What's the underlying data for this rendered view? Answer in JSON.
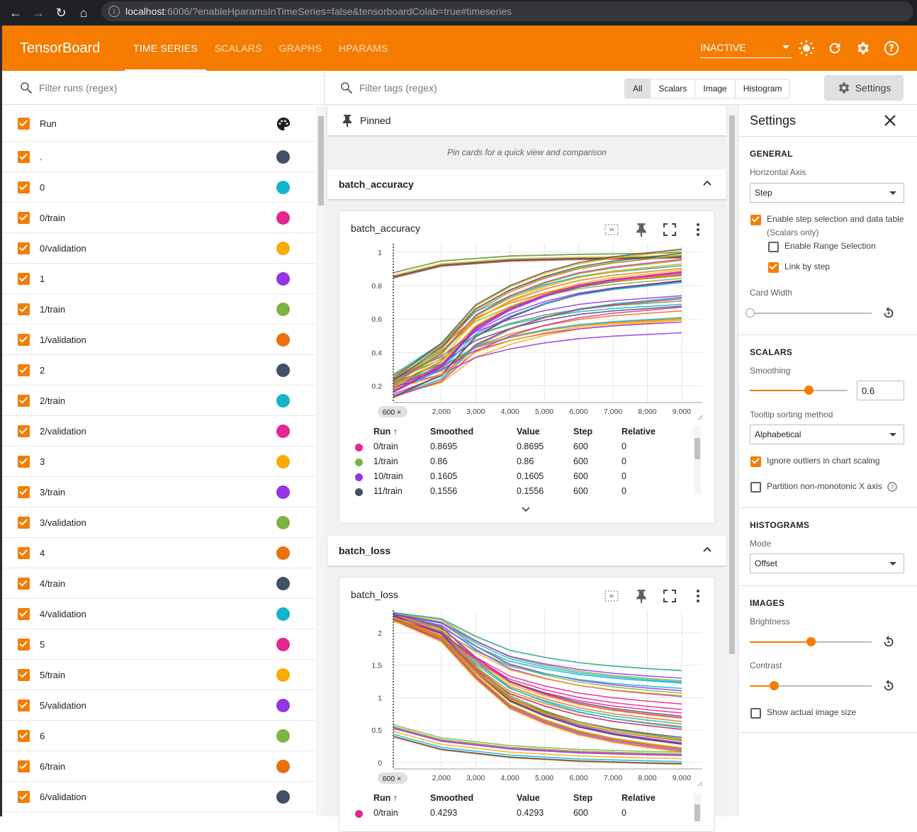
{
  "browser": {
    "url_host": "localhost",
    "url_rest": ":6006/?enableHparamsInTimeSeries=false&tensorboardColab=true#timeseries"
  },
  "topbar": {
    "brand": "TensorBoard",
    "tabs": [
      "TIME SERIES",
      "SCALARS",
      "GRAPHS",
      "HPARAMS"
    ],
    "active_tab": "TIME SERIES",
    "reload_select": "INACTIVE",
    "accent": "#f57c00"
  },
  "runs_panel": {
    "filter_placeholder": "Filter runs (regex)",
    "header_label": "Run",
    "runs": [
      {
        "name": ".",
        "color": "#425066"
      },
      {
        "name": "0",
        "color": "#12b5cb"
      },
      {
        "name": "0/train",
        "color": "#e52592"
      },
      {
        "name": "0/validation",
        "color": "#f9ab00"
      },
      {
        "name": "1",
        "color": "#9334e6"
      },
      {
        "name": "1/train",
        "color": "#7cb342"
      },
      {
        "name": "1/validation",
        "color": "#e8710a"
      },
      {
        "name": "2",
        "color": "#425066"
      },
      {
        "name": "2/train",
        "color": "#12b5cb"
      },
      {
        "name": "2/validation",
        "color": "#e52592"
      },
      {
        "name": "3",
        "color": "#f9ab00"
      },
      {
        "name": "3/train",
        "color": "#9334e6"
      },
      {
        "name": "3/validation",
        "color": "#7cb342"
      },
      {
        "name": "4",
        "color": "#e8710a"
      },
      {
        "name": "4/train",
        "color": "#425066"
      },
      {
        "name": "4/validation",
        "color": "#12b5cb"
      },
      {
        "name": "5",
        "color": "#e52592"
      },
      {
        "name": "5/train",
        "color": "#f9ab00"
      },
      {
        "name": "5/validation",
        "color": "#9334e6"
      },
      {
        "name": "6",
        "color": "#7cb342"
      },
      {
        "name": "6/train",
        "color": "#e8710a"
      },
      {
        "name": "6/validation",
        "color": "#425066"
      }
    ]
  },
  "main": {
    "filter_tags_placeholder": "Filter tags (regex)",
    "type_filters": [
      "All",
      "Scalars",
      "Image",
      "Histogram"
    ],
    "settings_button": "Settings",
    "pinned_label": "Pinned",
    "pinned_hint": "Pin cards for a quick view and comparison",
    "groups": [
      {
        "name": "batch_accuracy",
        "card_title": "batch_accuracy",
        "step_badge": "600",
        "table_headers": [
          "Run",
          "Smoothed",
          "Value",
          "Step",
          "Relative"
        ],
        "rows": [
          {
            "run": "0/train",
            "smoothed": "0.8695",
            "value": "0.8695",
            "step": "600",
            "relative": "0",
            "color": "#e52592"
          },
          {
            "run": "1/train",
            "smoothed": "0.86",
            "value": "0.86",
            "step": "600",
            "relative": "0",
            "color": "#7cb342"
          },
          {
            "run": "10/train",
            "smoothed": "0.1605",
            "value": "0.1605",
            "step": "600",
            "relative": "0",
            "color": "#9334e6"
          },
          {
            "run": "11/train",
            "smoothed": "0.1556",
            "value": "0.1556",
            "step": "600",
            "relative": "0",
            "color": "#425066"
          }
        ]
      },
      {
        "name": "batch_loss",
        "card_title": "batch_loss",
        "step_badge": "600",
        "table_headers": [
          "Run",
          "Smoothed",
          "Value",
          "Step",
          "Relative"
        ],
        "rows": [
          {
            "run": "0/train",
            "smoothed": "0.4293",
            "value": "0.4293",
            "step": "600",
            "relative": "0",
            "color": "#e52592"
          }
        ]
      }
    ]
  },
  "settings_panel": {
    "title": "Settings",
    "general": {
      "heading": "GENERAL",
      "horizontal_axis_label": "Horizontal Axis",
      "horizontal_axis_value": "Step",
      "step_selection_label": "Enable step selection and data table",
      "step_selection_sub": "(Scalars only)",
      "step_selection_checked": true,
      "range_selection_label": "Enable Range Selection",
      "range_selection_checked": false,
      "link_by_step_label": "Link by step",
      "link_by_step_checked": true,
      "card_width_label": "Card Width",
      "card_width_level": 0
    },
    "scalars": {
      "heading": "SCALARS",
      "smoothing_label": "Smoothing",
      "smoothing_value": "0.6",
      "smoothing_level": 0.6,
      "tooltip_sort_label": "Tooltip sorting method",
      "tooltip_sort_value": "Alphabetical",
      "ignore_outliers_label": "Ignore outliers in chart scaling",
      "ignore_outliers_checked": true,
      "partition_label": "Partition non-monotonic X axis",
      "partition_checked": false
    },
    "histograms": {
      "heading": "HISTOGRAMS",
      "mode_label": "Mode",
      "mode_value": "Offset"
    },
    "images": {
      "heading": "IMAGES",
      "brightness_label": "Brightness",
      "brightness_level": 0.5,
      "contrast_label": "Contrast",
      "contrast_level": 0.2,
      "actual_size_label": "Show actual image size",
      "actual_size_checked": false
    }
  },
  "chart_data": [
    {
      "type": "line",
      "title": "batch_accuracy",
      "x_ticks": [
        "2,000",
        "3,000",
        "4,000",
        "5,000",
        "6,000",
        "7,000",
        "8,000",
        "9,000"
      ],
      "y_ticks": [
        "0.2",
        "0.4",
        "0.6",
        "0.8",
        "1"
      ],
      "xlim": [
        600,
        9600
      ],
      "ylim": [
        0.1,
        1.05
      ],
      "selected_step": 600,
      "series_groups": [
        {
          "desc": "train-accuracy cluster",
          "x": [
            600,
            2000,
            4000,
            6000,
            8000,
            9000
          ],
          "y": [
            0.86,
            0.93,
            0.96,
            0.97,
            0.975,
            0.98
          ],
          "count": 8
        },
        {
          "desc": "main accuracy cluster",
          "x": [
            600,
            2000,
            3000,
            4000,
            5000,
            6000,
            7000,
            8000,
            9000
          ],
          "y": [
            0.2,
            0.35,
            0.55,
            0.65,
            0.72,
            0.77,
            0.8,
            0.82,
            0.84
          ],
          "count": 40
        }
      ]
    },
    {
      "type": "line",
      "title": "batch_loss",
      "x_ticks": [
        "2,000",
        "3,000",
        "4,000",
        "5,000",
        "6,000",
        "7,000",
        "8,000",
        "9,000"
      ],
      "y_ticks": [
        "0",
        "0.5",
        "1",
        "1.5",
        "2"
      ],
      "xlim": [
        600,
        9600
      ],
      "ylim": [
        -0.1,
        2.35
      ],
      "selected_step": 600,
      "series_groups": [
        {
          "desc": "main loss cluster",
          "x": [
            600,
            2000,
            3000,
            4000,
            5000,
            6000,
            7000,
            8000,
            9000
          ],
          "y": [
            2.25,
            2.0,
            1.5,
            1.1,
            0.9,
            0.75,
            0.65,
            0.58,
            0.52
          ],
          "count": 40
        },
        {
          "desc": "train-loss cluster",
          "x": [
            600,
            2000,
            4000,
            6000,
            8000,
            9000
          ],
          "y": [
            0.5,
            0.3,
            0.18,
            0.12,
            0.09,
            0.08
          ],
          "count": 8
        }
      ]
    }
  ]
}
